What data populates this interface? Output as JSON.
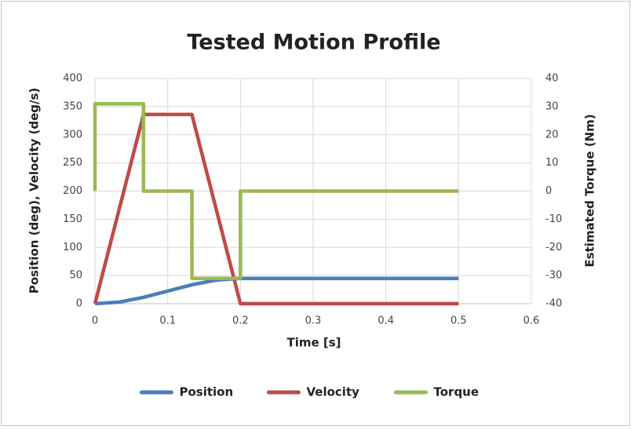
{
  "chart_data": {
    "type": "line",
    "title": "Tested Motion Profile",
    "xlabel": "Time [s]",
    "ylabel": "Position (deg),  Velocity (deg/s)",
    "y2label": "Estimated Torque (Nm)",
    "xlim": [
      0,
      0.6
    ],
    "xticks": [
      0,
      0.1,
      0.2,
      0.3,
      0.4,
      0.5,
      0.6
    ],
    "ylim": [
      0,
      400
    ],
    "yticks": [
      0,
      50,
      100,
      150,
      200,
      250,
      300,
      350,
      400
    ],
    "y2lim": [
      -40,
      40
    ],
    "y2ticks": [
      -40,
      -30,
      -20,
      -10,
      0,
      10,
      20,
      30,
      40
    ],
    "grid": true,
    "legend": "bottom",
    "series": [
      {
        "name": "Position",
        "color": "#4a7ebb",
        "x": [
          0,
          0.0333,
          0.0667,
          0.1,
          0.1333,
          0.1667,
          0.2,
          0.5
        ],
        "values": [
          0,
          2.8,
          11.2,
          22.4,
          33.6,
          42,
          44.8,
          44.8
        ]
      },
      {
        "name": "Velocity",
        "color": "#be4b48",
        "x": [
          0,
          0.0667,
          0.1333,
          0.2,
          0.5
        ],
        "values": [
          0,
          336,
          336,
          0,
          0
        ]
      },
      {
        "name": "Torque",
        "color": "#98b954",
        "axis": "y2",
        "x": [
          0,
          0,
          0.0667,
          0.0667,
          0.1333,
          0.1333,
          0.2,
          0.2,
          0.5
        ],
        "values": [
          0,
          31,
          31,
          0,
          0,
          -31,
          -31,
          0,
          0
        ]
      }
    ]
  }
}
